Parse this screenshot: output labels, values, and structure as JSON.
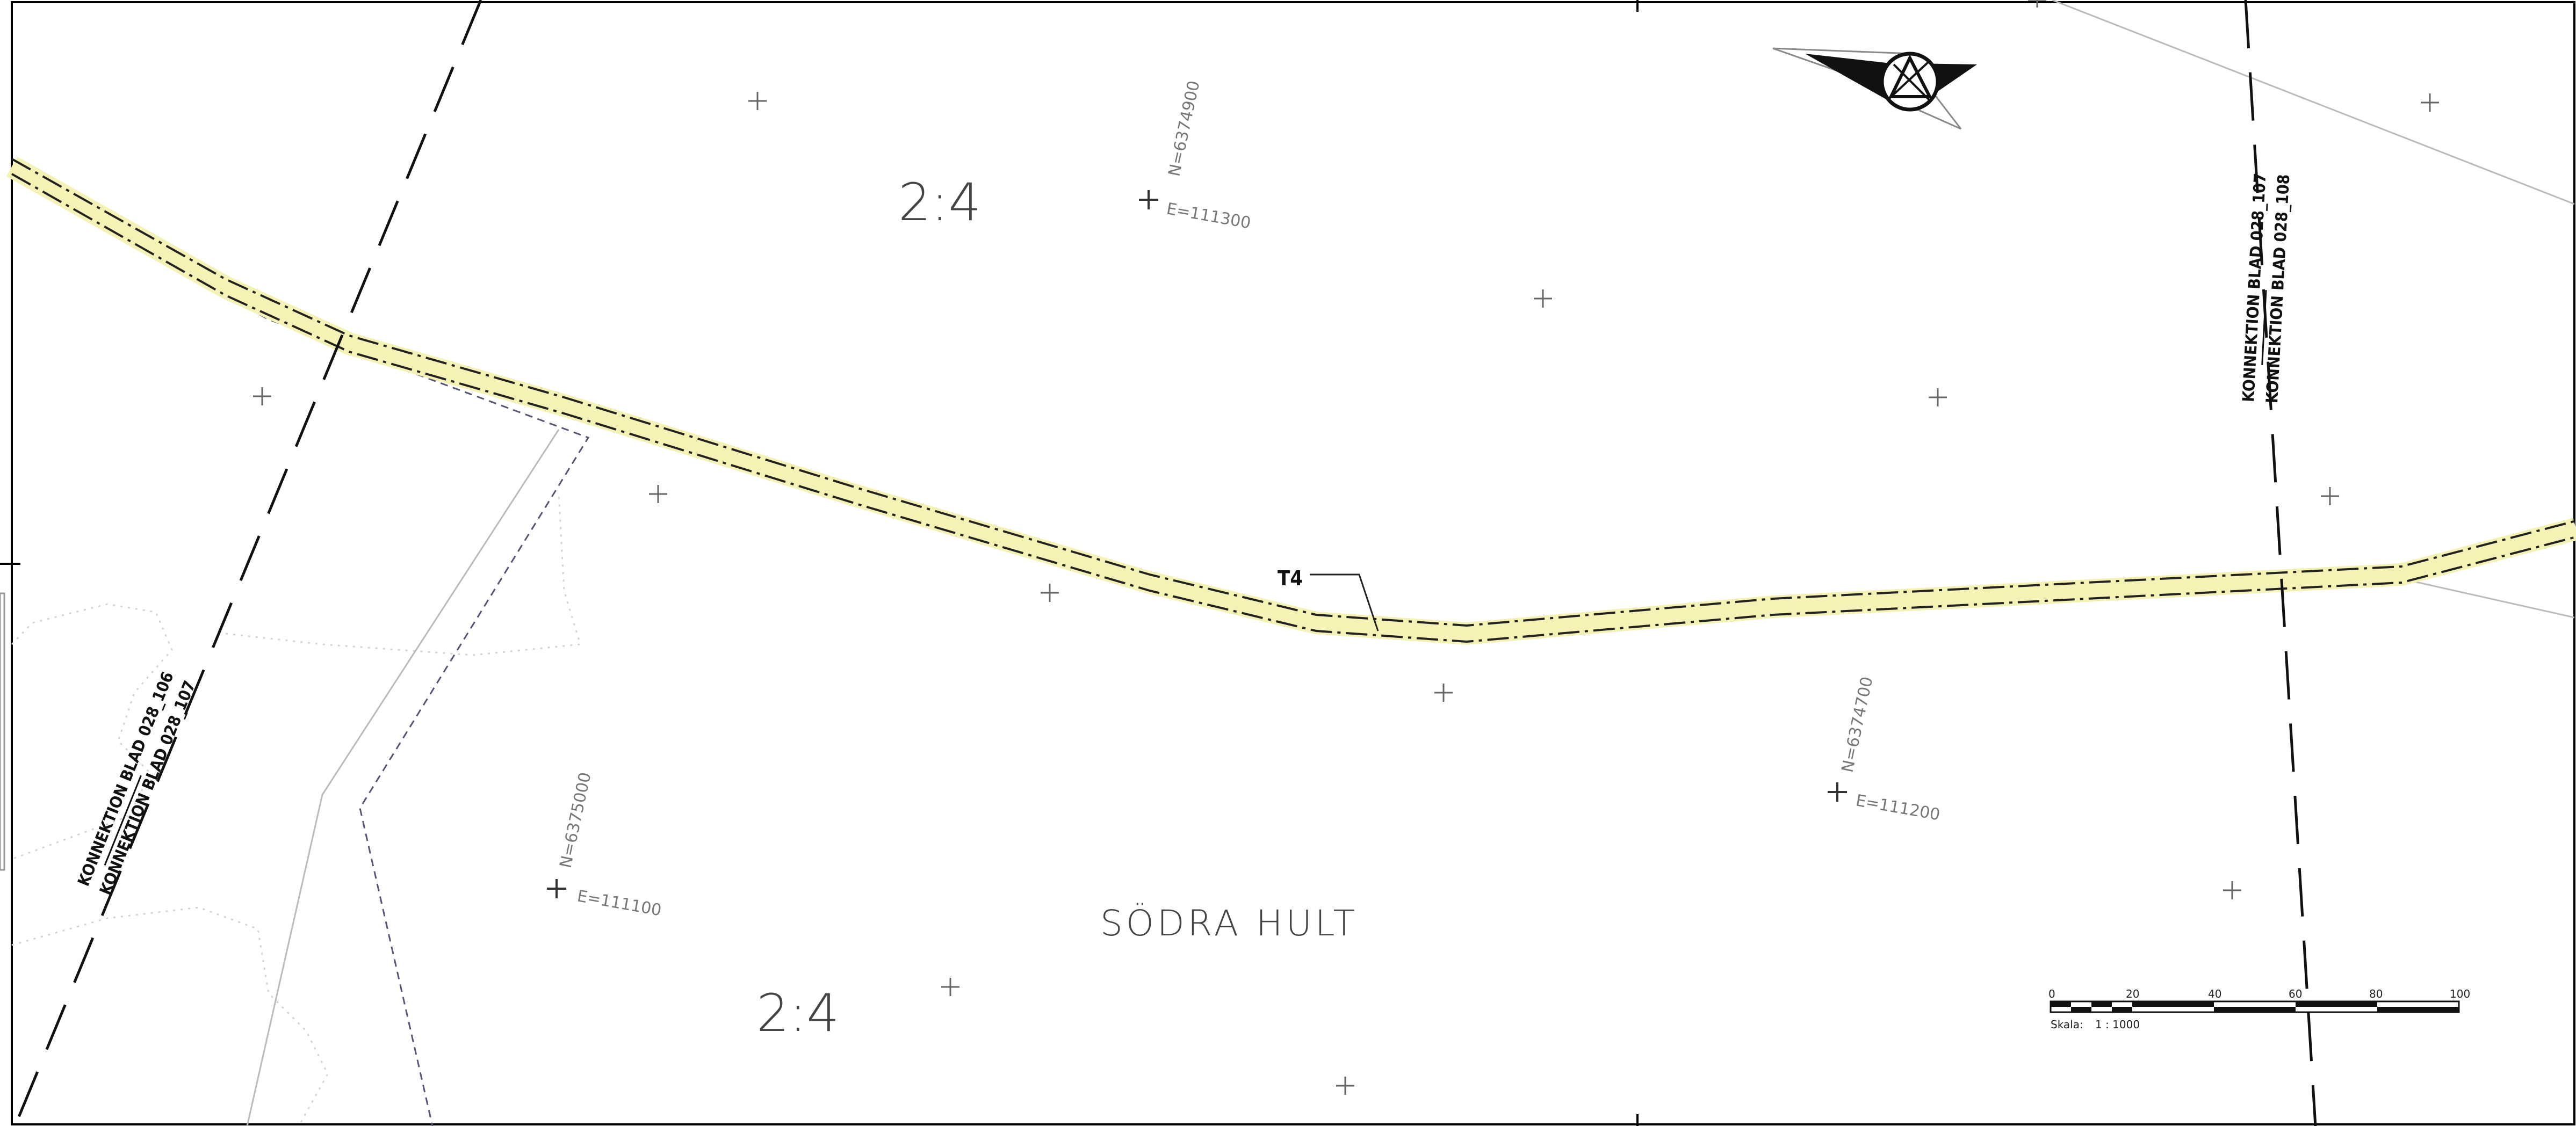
{
  "map": {
    "parcel_labels": [
      "2:4",
      "2:4"
    ],
    "place_name": "SÖDRA HULT",
    "route_label": "T4",
    "connections": [
      {
        "top": "KONNEKTION BLAD 028_106",
        "bottom": "KONNEKTION BLAD 028_107"
      },
      {
        "top": "KONNEKTION BLAD 028_107",
        "bottom": "KONNEKTION BLAD 028_108"
      }
    ],
    "coordinates": [
      {
        "n": "N=6374900",
        "e": "E=111300"
      },
      {
        "n": "N=6374700",
        "e": "E=111200"
      },
      {
        "n": "N=6375000",
        "e": "E=111100"
      }
    ],
    "scale_bar": {
      "ticks": [
        "0",
        "20",
        "40",
        "60",
        "80",
        "100"
      ],
      "label": "Skala:",
      "ratio": "1 : 1000"
    },
    "colors": {
      "route_fill": "#f4f2b4",
      "line": "#111111",
      "coord_text": "#777777",
      "property_line": "#555577"
    },
    "north_arrow_icon": "north-arrow-icon"
  }
}
